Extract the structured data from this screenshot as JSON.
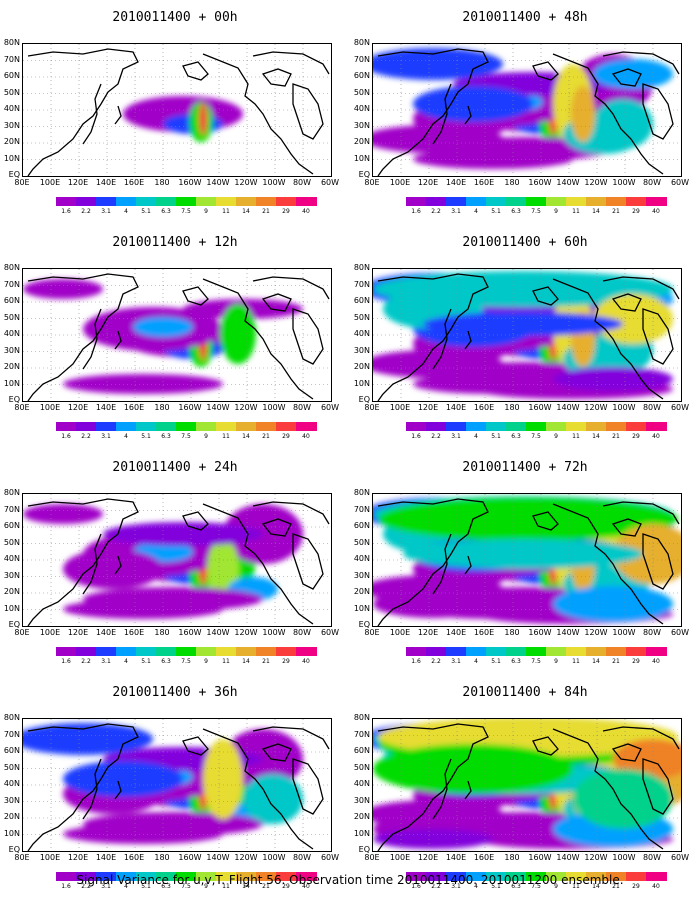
{
  "panels": [
    {
      "title": "2010011400 + 00h",
      "level": 0
    },
    {
      "title": "2010011400 + 48h",
      "level": 4
    },
    {
      "title": "2010011400 + 12h",
      "level": 1
    },
    {
      "title": "2010011400 + 60h",
      "level": 5
    },
    {
      "title": "2010011400 + 24h",
      "level": 2
    },
    {
      "title": "2010011400 + 72h",
      "level": 6
    },
    {
      "title": "2010011400 + 36h",
      "level": 3
    },
    {
      "title": "2010011400 + 84h",
      "level": 7
    }
  ],
  "lat_labels": [
    "80N",
    "70N",
    "60N",
    "50N",
    "40N",
    "30N",
    "20N",
    "10N",
    "EQ"
  ],
  "lon_labels": [
    "80E",
    "100E",
    "120E",
    "140E",
    "160E",
    "180",
    "160W",
    "140W",
    "120W",
    "100W",
    "80W",
    "60W"
  ],
  "colorbar": {
    "colors": [
      "#a000c8",
      "#8200dc",
      "#1e3cff",
      "#00a0ff",
      "#00c8c8",
      "#00d28c",
      "#00dc00",
      "#a0e632",
      "#e6dc32",
      "#e6af2d",
      "#f08228",
      "#fa3c3c",
      "#f00082"
    ],
    "labels": [
      "1.6",
      "2.2",
      "3.1",
      "4",
      "5.1",
      "6.3",
      "7.5",
      "9",
      "11",
      "14",
      "21",
      "29",
      "40"
    ]
  },
  "caption": "Signal Variance for u,v,T. Flight 56. Observation time 2010011400. 2010011200 ensemble."
}
